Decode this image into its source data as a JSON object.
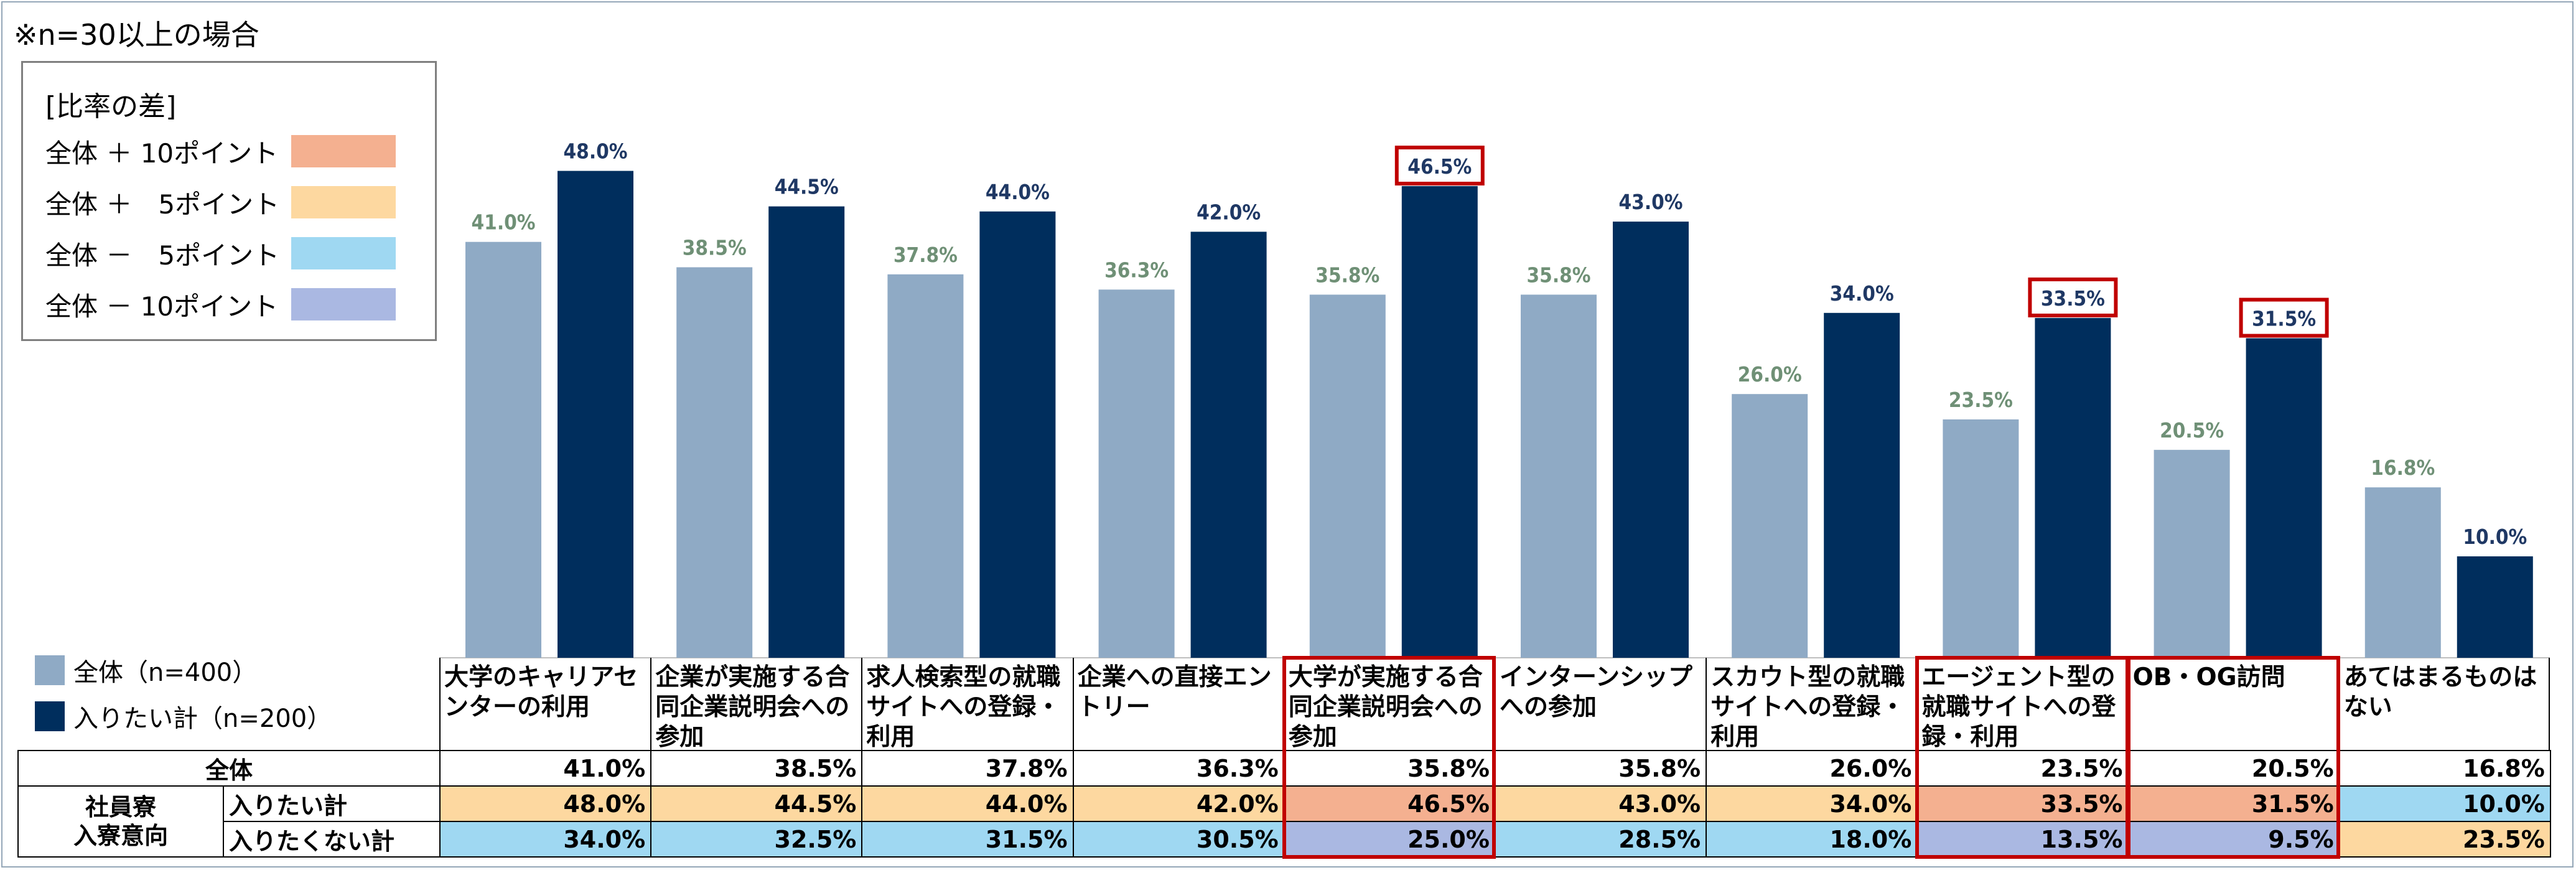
{
  "note": "※n=30以上の場合",
  "legend": {
    "title": "[比率の差]",
    "items": [
      {
        "label": "全体 ＋ 10ポイント",
        "color": "#f4b090"
      },
      {
        "label": "全体 ＋　5ポイント",
        "color": "#fdd8a0"
      },
      {
        "label": "全体 －　5ポイント",
        "color": "#9fd8f2"
      },
      {
        "label": "全体 － 10ポイント",
        "color": "#aab8e2"
      }
    ]
  },
  "colors": {
    "all": "#8faac5",
    "want": "#002e5d",
    "all_label": "#6f9076",
    "want_label": "#1f3864",
    "highlight": "#c00000"
  },
  "chart_data": {
    "type": "bar",
    "categories": [
      "大学のキャリアセンターの利用",
      "企業が実施する合同企業説明会への参加",
      "求人検索型の就職サイトへの登録・利用",
      "企業への直接エントリー",
      "大学が実施する合同企業説明会への参加",
      "インターンシップへの参加",
      "スカウト型の就職サイトへの登録・利用",
      "エージェント型の就職サイトへの登録・利用",
      "OB・OG訪問",
      "あてはまるものはない"
    ],
    "categories_display": [
      "大学のキャリアセ\nンターの利用",
      "企業が実施する合\n同企業説明会への\n参加",
      "求人検索型の就職\nサイトへの登録・\n利用",
      "企業への直接エン\nトリー",
      "大学が実施する合\n同企業説明会への\n参加",
      "インターンシップ\nへの参加",
      "スカウト型の就職\nサイトへの登録・\n利用",
      "エージェント型の\n就職サイトへの登\n録・利用",
      "OB・OG訪問",
      "あてはまるものは\nない"
    ],
    "series": [
      {
        "name": "全体（n=400）",
        "values": [
          41.0,
          38.5,
          37.8,
          36.3,
          35.8,
          35.8,
          26.0,
          23.5,
          20.5,
          16.8
        ]
      },
      {
        "name": "入りたい計（n=200）",
        "values": [
          48.0,
          44.5,
          44.0,
          42.0,
          46.5,
          43.0,
          34.0,
          33.5,
          31.5,
          10.0
        ]
      }
    ],
    "ylim": [
      0,
      50
    ],
    "highlighted_categories": [
      4,
      7,
      8
    ]
  },
  "table": {
    "group_label": "社員寮\n入寮意向",
    "rows": [
      {
        "label": "全体",
        "values": [
          "41.0%",
          "38.5%",
          "37.8%",
          "36.3%",
          "35.8%",
          "35.8%",
          "26.0%",
          "23.5%",
          "20.5%",
          "16.8%"
        ],
        "shading": [
          null,
          null,
          null,
          null,
          null,
          null,
          null,
          null,
          null,
          null
        ]
      },
      {
        "label": "入りたい計",
        "values": [
          "48.0%",
          "44.5%",
          "44.0%",
          "42.0%",
          "46.5%",
          "43.0%",
          "34.0%",
          "33.5%",
          "31.5%",
          "10.0%"
        ],
        "shading": [
          "plus5",
          "plus5",
          "plus5",
          "plus5",
          "plus10",
          "plus5",
          "plus5",
          "plus10",
          "plus10",
          "minus5"
        ]
      },
      {
        "label": "入りたくない計",
        "values": [
          "34.0%",
          "32.5%",
          "31.5%",
          "30.5%",
          "25.0%",
          "28.5%",
          "18.0%",
          "13.5%",
          "9.5%",
          "23.5%"
        ],
        "shading": [
          "minus5",
          "minus5",
          "minus5",
          "minus5",
          "minus10",
          "minus5",
          "minus5",
          "minus10",
          "minus10",
          "plus5"
        ]
      }
    ]
  }
}
